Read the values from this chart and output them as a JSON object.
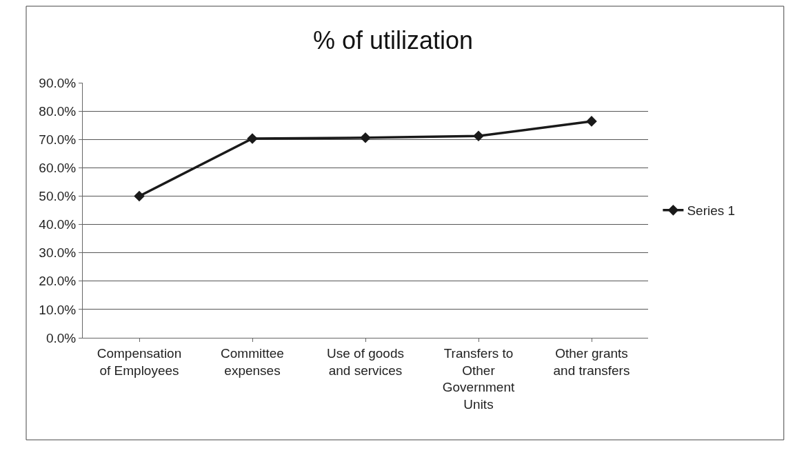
{
  "chart_data": {
    "type": "line",
    "title": "% of utilization",
    "categories": [
      "Compensation of Employees",
      "Committee expenses",
      "Use of goods and services",
      "Transfers to Other Government Units",
      "Other grants and transfers"
    ],
    "series": [
      {
        "name": "Series 1",
        "color": "#1a1a1a",
        "values": [
          50.0,
          70.3,
          70.6,
          71.2,
          76.4
        ]
      }
    ],
    "ylim": [
      0,
      90
    ],
    "yticks": [
      {
        "value": 0,
        "label": "0.0%"
      },
      {
        "value": 10,
        "label": "10.0%"
      },
      {
        "value": 20,
        "label": "20.0%"
      },
      {
        "value": 30,
        "label": "30.0%"
      },
      {
        "value": 40,
        "label": "40.0%"
      },
      {
        "value": 50,
        "label": "50.0%"
      },
      {
        "value": 60,
        "label": "60.0%"
      },
      {
        "value": 70,
        "label": "70.0%"
      },
      {
        "value": 80,
        "label": "80.0%"
      },
      {
        "value": 90,
        "label": "90.0%"
      }
    ],
    "grid": "y",
    "legend": "right",
    "marker": "diamond",
    "line_style": "solid"
  }
}
